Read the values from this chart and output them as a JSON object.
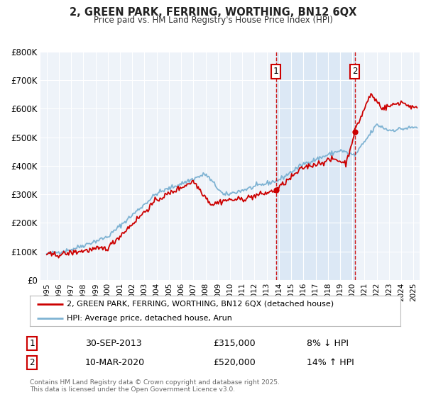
{
  "title": "2, GREEN PARK, FERRING, WORTHING, BN12 6QX",
  "subtitle": "Price paid vs. HM Land Registry's House Price Index (HPI)",
  "xlim": [
    1994.5,
    2025.5
  ],
  "ylim": [
    0,
    800000
  ],
  "yticks": [
    0,
    100000,
    200000,
    300000,
    400000,
    500000,
    600000,
    700000,
    800000
  ],
  "ytick_labels": [
    "£0",
    "£100K",
    "£200K",
    "£300K",
    "£400K",
    "£500K",
    "£600K",
    "£700K",
    "£800K"
  ],
  "xticks": [
    1995,
    1996,
    1997,
    1998,
    1999,
    2000,
    2001,
    2002,
    2003,
    2004,
    2005,
    2006,
    2007,
    2008,
    2009,
    2010,
    2011,
    2012,
    2013,
    2014,
    2015,
    2016,
    2017,
    2018,
    2019,
    2020,
    2021,
    2022,
    2023,
    2024,
    2025
  ],
  "hpi_color": "#7fb3d3",
  "price_color": "#cc0000",
  "transaction1_x": 2013.75,
  "transaction1_y": 315000,
  "transaction2_x": 2020.19,
  "transaction2_y": 520000,
  "label1": "1",
  "label2": "2",
  "legend_price_label": "2, GREEN PARK, FERRING, WORTHING, BN12 6QX (detached house)",
  "legend_hpi_label": "HPI: Average price, detached house, Arun",
  "annotation1_date": "30-SEP-2013",
  "annotation1_price": "£315,000",
  "annotation1_hpi": "8% ↓ HPI",
  "annotation2_date": "10-MAR-2020",
  "annotation2_price": "£520,000",
  "annotation2_hpi": "14% ↑ HPI",
  "footnote": "Contains HM Land Registry data © Crown copyright and database right 2025.\nThis data is licensed under the Open Government Licence v3.0.",
  "background_color": "#ffffff",
  "plot_bg_color": "#eef3f9",
  "shade_color": "#dce8f5",
  "grid_color": "#ffffff"
}
